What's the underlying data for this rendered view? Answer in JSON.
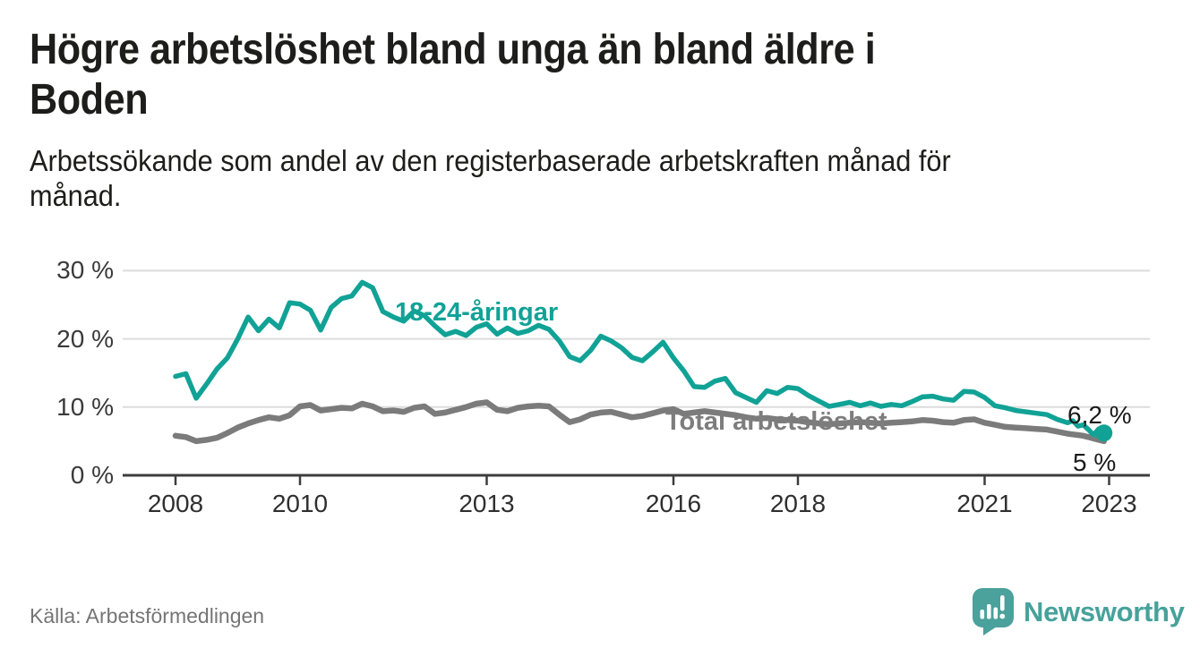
{
  "header": {
    "title": "Högre arbetslöshet bland unga än bland äldre i Boden",
    "title_lines": [
      "Högre arbetslöshet bland unga än bland äldre i",
      "Boden"
    ],
    "subtitle": "Arbetssökande som andel av den registerbaserade arbetskraften månad för månad.",
    "subtitle_lines": [
      "Arbetssökande som andel av den registerbaserade arbetskraften månad för",
      "månad."
    ]
  },
  "footer": {
    "source": "Källa: Arbetsförmedlingen",
    "brand": "Newsworthy",
    "logo_icon": "speech-bubble-bar-chart"
  },
  "colors": {
    "young": "#11a296",
    "total": "#7b7b7b",
    "axis": "#3d3d3d",
    "grid": "#dcdcdc",
    "text": "#1d1d1b",
    "muted": "#757575",
    "brand": "#46a29b"
  },
  "chart_data": {
    "type": "line",
    "title": "Högre arbetslöshet bland unga än bland äldre i Boden",
    "subtitle": "Arbetssökande som andel av den registerbaserade arbetskraften månad för månad.",
    "source": "Källa: Arbetsförmedlingen",
    "xlabel": "",
    "ylabel": "",
    "grid": "horizontal",
    "legend_position": "inline-labels",
    "xlim": [
      2007.9,
      2023.65
    ],
    "ylim": [
      0,
      31.5
    ],
    "x_ticks": [
      {
        "v": 2008,
        "label": "2008"
      },
      {
        "v": 2010,
        "label": "2010"
      },
      {
        "v": 2013,
        "label": "2013"
      },
      {
        "v": 2016,
        "label": "2016"
      },
      {
        "v": 2018,
        "label": "2018"
      },
      {
        "v": 2021,
        "label": "2021"
      },
      {
        "v": 2023,
        "label": "2023"
      }
    ],
    "y_ticks": [
      {
        "v": 0,
        "label": "0 %"
      },
      {
        "v": 10,
        "label": "10 %"
      },
      {
        "v": 20,
        "label": "20 %"
      },
      {
        "v": 30,
        "label": "30 %"
      }
    ],
    "series": [
      {
        "id": "young",
        "name": "18-24-åringar",
        "color": "#11a296",
        "end_label": "6,2 %",
        "end_value": 6.2,
        "end_dot": true,
        "points": [
          [
            2008.0,
            14.5
          ],
          [
            2008.167,
            14.9
          ],
          [
            2008.333,
            11.3
          ],
          [
            2008.5,
            13.4
          ],
          [
            2008.667,
            15.6
          ],
          [
            2008.833,
            17.2
          ],
          [
            2009.0,
            20.0
          ],
          [
            2009.167,
            23.2
          ],
          [
            2009.333,
            21.2
          ],
          [
            2009.5,
            22.9
          ],
          [
            2009.667,
            21.6
          ],
          [
            2009.833,
            25.3
          ],
          [
            2010.0,
            25.1
          ],
          [
            2010.167,
            24.2
          ],
          [
            2010.333,
            21.3
          ],
          [
            2010.5,
            24.6
          ],
          [
            2010.667,
            25.9
          ],
          [
            2010.833,
            26.3
          ],
          [
            2011.0,
            28.3
          ],
          [
            2011.167,
            27.5
          ],
          [
            2011.333,
            24.0
          ],
          [
            2011.5,
            23.2
          ],
          [
            2011.667,
            22.6
          ],
          [
            2011.833,
            24.1
          ],
          [
            2012.0,
            23.4
          ],
          [
            2012.167,
            21.9
          ],
          [
            2012.333,
            20.6
          ],
          [
            2012.5,
            21.1
          ],
          [
            2012.667,
            20.5
          ],
          [
            2012.833,
            21.7
          ],
          [
            2013.0,
            22.2
          ],
          [
            2013.167,
            20.7
          ],
          [
            2013.333,
            21.6
          ],
          [
            2013.5,
            20.8
          ],
          [
            2013.667,
            21.2
          ],
          [
            2013.833,
            22.0
          ],
          [
            2014.0,
            21.4
          ],
          [
            2014.167,
            19.7
          ],
          [
            2014.333,
            17.4
          ],
          [
            2014.5,
            16.8
          ],
          [
            2014.667,
            18.3
          ],
          [
            2014.833,
            20.4
          ],
          [
            2015.0,
            19.7
          ],
          [
            2015.167,
            18.7
          ],
          [
            2015.333,
            17.3
          ],
          [
            2015.5,
            16.8
          ],
          [
            2015.667,
            18.1
          ],
          [
            2015.833,
            19.5
          ],
          [
            2016.0,
            17.2
          ],
          [
            2016.167,
            15.3
          ],
          [
            2016.333,
            13.0
          ],
          [
            2016.5,
            12.9
          ],
          [
            2016.667,
            13.8
          ],
          [
            2016.833,
            14.2
          ],
          [
            2017.0,
            12.1
          ],
          [
            2017.167,
            11.4
          ],
          [
            2017.333,
            10.7
          ],
          [
            2017.5,
            12.4
          ],
          [
            2017.667,
            12.0
          ],
          [
            2017.833,
            12.9
          ],
          [
            2018.0,
            12.7
          ],
          [
            2018.167,
            11.7
          ],
          [
            2018.333,
            10.9
          ],
          [
            2018.5,
            10.1
          ],
          [
            2018.667,
            10.4
          ],
          [
            2018.833,
            10.7
          ],
          [
            2019.0,
            10.2
          ],
          [
            2019.167,
            10.6
          ],
          [
            2019.333,
            10.1
          ],
          [
            2019.5,
            10.4
          ],
          [
            2019.667,
            10.2
          ],
          [
            2019.833,
            10.8
          ],
          [
            2020.0,
            11.5
          ],
          [
            2020.167,
            11.6
          ],
          [
            2020.333,
            11.2
          ],
          [
            2020.5,
            11.0
          ],
          [
            2020.667,
            12.3
          ],
          [
            2020.833,
            12.2
          ],
          [
            2021.0,
            11.4
          ],
          [
            2021.167,
            10.2
          ],
          [
            2021.333,
            9.9
          ],
          [
            2021.5,
            9.5
          ],
          [
            2021.667,
            9.3
          ],
          [
            2021.833,
            9.1
          ],
          [
            2022.0,
            8.9
          ],
          [
            2022.167,
            8.2
          ],
          [
            2022.333,
            7.7
          ],
          [
            2022.417,
            8.0
          ],
          [
            2022.5,
            7.2
          ],
          [
            2022.583,
            7.4
          ],
          [
            2022.667,
            6.7
          ],
          [
            2022.75,
            5.9
          ],
          [
            2022.833,
            6.8
          ],
          [
            2022.917,
            6.2
          ]
        ]
      },
      {
        "id": "total",
        "name": "Total arbetslöshet",
        "color": "#7b7b7b",
        "end_label": "5 %",
        "end_value": 5.0,
        "end_dot": false,
        "points": [
          [
            2008.0,
            5.8
          ],
          [
            2008.167,
            5.6
          ],
          [
            2008.333,
            5.0
          ],
          [
            2008.5,
            5.2
          ],
          [
            2008.667,
            5.5
          ],
          [
            2008.833,
            6.2
          ],
          [
            2009.0,
            7.0
          ],
          [
            2009.167,
            7.6
          ],
          [
            2009.333,
            8.1
          ],
          [
            2009.5,
            8.5
          ],
          [
            2009.667,
            8.3
          ],
          [
            2009.833,
            8.8
          ],
          [
            2010.0,
            10.1
          ],
          [
            2010.167,
            10.3
          ],
          [
            2010.333,
            9.5
          ],
          [
            2010.5,
            9.7
          ],
          [
            2010.667,
            9.9
          ],
          [
            2010.833,
            9.8
          ],
          [
            2011.0,
            10.5
          ],
          [
            2011.167,
            10.1
          ],
          [
            2011.333,
            9.4
          ],
          [
            2011.5,
            9.5
          ],
          [
            2011.667,
            9.3
          ],
          [
            2011.833,
            9.9
          ],
          [
            2012.0,
            10.1
          ],
          [
            2012.167,
            9.0
          ],
          [
            2012.333,
            9.2
          ],
          [
            2012.5,
            9.6
          ],
          [
            2012.667,
            10.0
          ],
          [
            2012.833,
            10.5
          ],
          [
            2013.0,
            10.7
          ],
          [
            2013.167,
            9.6
          ],
          [
            2013.333,
            9.4
          ],
          [
            2013.5,
            9.9
          ],
          [
            2013.667,
            10.1
          ],
          [
            2013.833,
            10.2
          ],
          [
            2014.0,
            10.1
          ],
          [
            2014.167,
            8.9
          ],
          [
            2014.333,
            7.8
          ],
          [
            2014.5,
            8.2
          ],
          [
            2014.667,
            8.9
          ],
          [
            2014.833,
            9.2
          ],
          [
            2015.0,
            9.3
          ],
          [
            2015.167,
            8.9
          ],
          [
            2015.333,
            8.5
          ],
          [
            2015.5,
            8.7
          ],
          [
            2015.667,
            9.1
          ],
          [
            2015.833,
            9.5
          ],
          [
            2016.0,
            9.7
          ],
          [
            2016.167,
            9.0
          ],
          [
            2016.333,
            9.2
          ],
          [
            2016.5,
            9.4
          ],
          [
            2016.667,
            9.2
          ],
          [
            2016.833,
            9.0
          ],
          [
            2017.0,
            8.8
          ],
          [
            2017.167,
            8.5
          ],
          [
            2017.333,
            8.3
          ],
          [
            2017.5,
            8.4
          ],
          [
            2017.667,
            8.2
          ],
          [
            2017.833,
            8.1
          ],
          [
            2018.0,
            8.0
          ],
          [
            2018.167,
            7.8
          ],
          [
            2018.333,
            7.6
          ],
          [
            2018.5,
            7.5
          ],
          [
            2018.667,
            7.6
          ],
          [
            2018.833,
            7.7
          ],
          [
            2019.0,
            7.8
          ],
          [
            2019.167,
            7.7
          ],
          [
            2019.333,
            7.6
          ],
          [
            2019.5,
            7.7
          ],
          [
            2019.667,
            7.8
          ],
          [
            2019.833,
            7.9
          ],
          [
            2020.0,
            8.1
          ],
          [
            2020.167,
            8.0
          ],
          [
            2020.333,
            7.8
          ],
          [
            2020.5,
            7.7
          ],
          [
            2020.667,
            8.1
          ],
          [
            2020.833,
            8.2
          ],
          [
            2021.0,
            7.7
          ],
          [
            2021.167,
            7.4
          ],
          [
            2021.333,
            7.1
          ],
          [
            2021.5,
            7.0
          ],
          [
            2021.667,
            6.9
          ],
          [
            2021.833,
            6.8
          ],
          [
            2022.0,
            6.7
          ],
          [
            2022.167,
            6.4
          ],
          [
            2022.333,
            6.1
          ],
          [
            2022.417,
            6.0
          ],
          [
            2022.5,
            5.9
          ],
          [
            2022.583,
            5.8
          ],
          [
            2022.667,
            5.6
          ],
          [
            2022.75,
            5.4
          ],
          [
            2022.833,
            5.2
          ],
          [
            2022.917,
            5.0
          ]
        ]
      }
    ]
  }
}
